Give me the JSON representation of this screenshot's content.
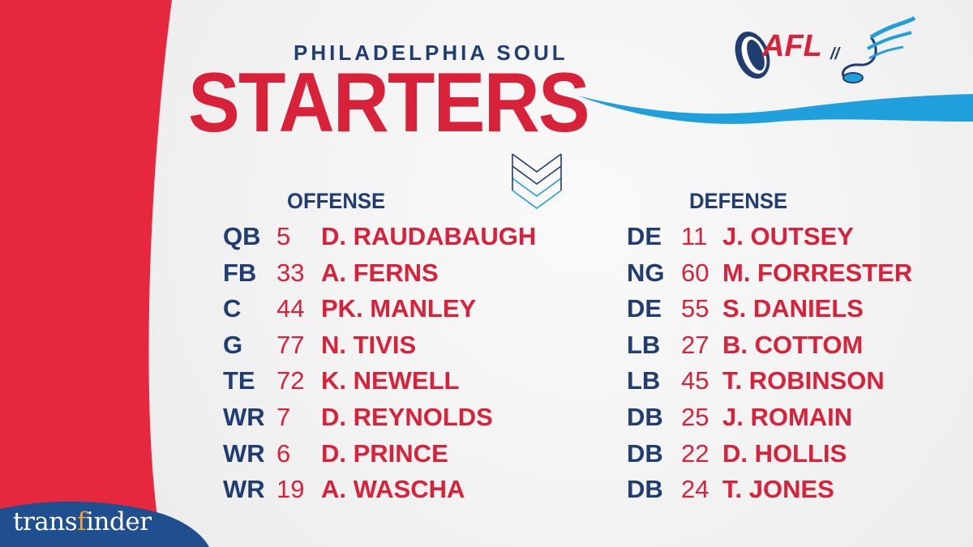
{
  "header": {
    "team": "PHILADELPHIA SOUL",
    "title": "STARTERS"
  },
  "logos": {
    "league_icon": "football-shield-icon",
    "league_text": "AFL",
    "separator": "//",
    "team_icon": "wing-football-icon"
  },
  "offense": {
    "heading": "OFFENSE",
    "players": [
      {
        "pos": "QB",
        "num": "5",
        "name": "D. RAUDABAUGH"
      },
      {
        "pos": "FB",
        "num": "33",
        "name": "A. FERNS"
      },
      {
        "pos": "C",
        "num": "44",
        "name": "PK. MANLEY"
      },
      {
        "pos": "G",
        "num": "77",
        "name": "N. TIVIS"
      },
      {
        "pos": "TE",
        "num": "72",
        "name": "K. NEWELL"
      },
      {
        "pos": "WR",
        "num": "7",
        "name": "D. REYNOLDS"
      },
      {
        "pos": "WR",
        "num": "6",
        "name": "D. PRINCE"
      },
      {
        "pos": "WR",
        "num": "19",
        "name": "A. WASCHA"
      }
    ]
  },
  "defense": {
    "heading": "DEFENSE",
    "players": [
      {
        "pos": "DE",
        "num": "11",
        "name": "J. OUTSEY"
      },
      {
        "pos": "NG",
        "num": "60",
        "name": "M. FORRESTER"
      },
      {
        "pos": "DE",
        "num": "55",
        "name": "S. DANIELS"
      },
      {
        "pos": "LB",
        "num": "27",
        "name": "B. COTTOM"
      },
      {
        "pos": "LB",
        "num": "45",
        "name": "T. ROBINSON"
      },
      {
        "pos": "DB",
        "num": "25",
        "name": "J. ROMAIN"
      },
      {
        "pos": "DB",
        "num": "22",
        "name": "D. HOLLIS"
      },
      {
        "pos": "DB",
        "num": "24",
        "name": "T. JONES"
      }
    ]
  },
  "sponsor": {
    "part1": "trans",
    "part2": "f",
    "part3": "inder"
  },
  "colors": {
    "red": "#d7223a",
    "navy": "#1f3d70",
    "blue_swoosh": "#1fa0dc",
    "sponsor_blue": "#1f4f8f",
    "sponsor_orange": "#f0a13c"
  }
}
